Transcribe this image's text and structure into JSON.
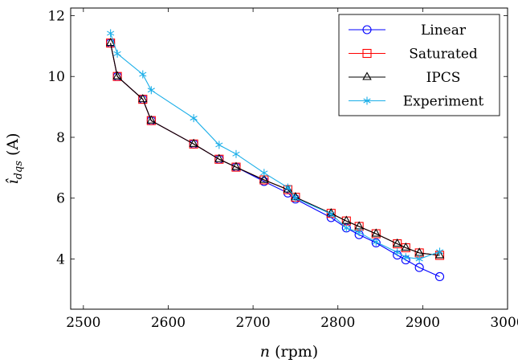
{
  "chart_data": {
    "type": "line",
    "title": "",
    "xlabel": {
      "var": "n",
      "unit": "(rpm)"
    },
    "ylabel": {
      "var": "î",
      "sub": "dqs",
      "unit": "(A)"
    },
    "xlim": [
      2485,
      3000
    ],
    "ylim": [
      2.35,
      12.25
    ],
    "xticks": [
      2500,
      2600,
      2700,
      2800,
      2900,
      3000
    ],
    "yticks": [
      4,
      6,
      8,
      10,
      12
    ],
    "grid": false,
    "legend_position": "top-right",
    "series": [
      {
        "name": "Linear",
        "color": "#0000ff",
        "marker": "circle",
        "points": [
          [
            2532,
            11.1
          ],
          [
            2540,
            10.0
          ],
          [
            2570,
            9.25
          ],
          [
            2580,
            8.55
          ],
          [
            2630,
            7.78
          ],
          [
            2660,
            7.28
          ],
          [
            2680,
            7.02
          ],
          [
            2713,
            6.55
          ],
          [
            2741,
            6.17
          ],
          [
            2750,
            5.97
          ],
          [
            2792,
            5.36
          ],
          [
            2810,
            5.02
          ],
          [
            2825,
            4.8
          ],
          [
            2845,
            4.53
          ],
          [
            2870,
            4.13
          ],
          [
            2880,
            3.97
          ],
          [
            2896,
            3.72
          ],
          [
            2920,
            3.42
          ]
        ]
      },
      {
        "name": "Saturated",
        "color": "#ff0000",
        "marker": "square",
        "points": [
          [
            2532,
            11.1
          ],
          [
            2540,
            10.0
          ],
          [
            2570,
            9.25
          ],
          [
            2580,
            8.55
          ],
          [
            2630,
            7.78
          ],
          [
            2660,
            7.28
          ],
          [
            2680,
            7.02
          ],
          [
            2713,
            6.6
          ],
          [
            2741,
            6.28
          ],
          [
            2750,
            6.03
          ],
          [
            2792,
            5.5
          ],
          [
            2810,
            5.25
          ],
          [
            2825,
            5.07
          ],
          [
            2845,
            4.83
          ],
          [
            2870,
            4.5
          ],
          [
            2880,
            4.37
          ],
          [
            2896,
            4.2
          ],
          [
            2920,
            4.12
          ]
        ]
      },
      {
        "name": "IPCS",
        "color": "#000000",
        "marker": "triangle",
        "points": [
          [
            2532,
            11.1
          ],
          [
            2540,
            10.0
          ],
          [
            2570,
            9.25
          ],
          [
            2580,
            8.55
          ],
          [
            2630,
            7.78
          ],
          [
            2660,
            7.28
          ],
          [
            2680,
            7.02
          ],
          [
            2713,
            6.6
          ],
          [
            2741,
            6.28
          ],
          [
            2750,
            6.03
          ],
          [
            2792,
            5.5
          ],
          [
            2810,
            5.25
          ],
          [
            2825,
            5.07
          ],
          [
            2845,
            4.83
          ],
          [
            2870,
            4.5
          ],
          [
            2880,
            4.37
          ],
          [
            2896,
            4.2
          ],
          [
            2920,
            4.12
          ]
        ]
      },
      {
        "name": "Experiment",
        "color": "#1aaee8",
        "marker": "asterisk",
        "points": [
          [
            2532,
            11.42
          ],
          [
            2540,
            10.75
          ],
          [
            2570,
            10.07
          ],
          [
            2580,
            9.55
          ],
          [
            2630,
            8.63
          ],
          [
            2660,
            7.75
          ],
          [
            2680,
            7.45
          ],
          [
            2713,
            6.83
          ],
          [
            2741,
            6.35
          ],
          [
            2750,
            6.0
          ],
          [
            2792,
            5.48
          ],
          [
            2810,
            5.02
          ],
          [
            2825,
            4.88
          ],
          [
            2845,
            4.56
          ],
          [
            2870,
            4.22
          ],
          [
            2880,
            4.06
          ],
          [
            2896,
            4.0
          ],
          [
            2920,
            4.24
          ]
        ]
      }
    ]
  }
}
